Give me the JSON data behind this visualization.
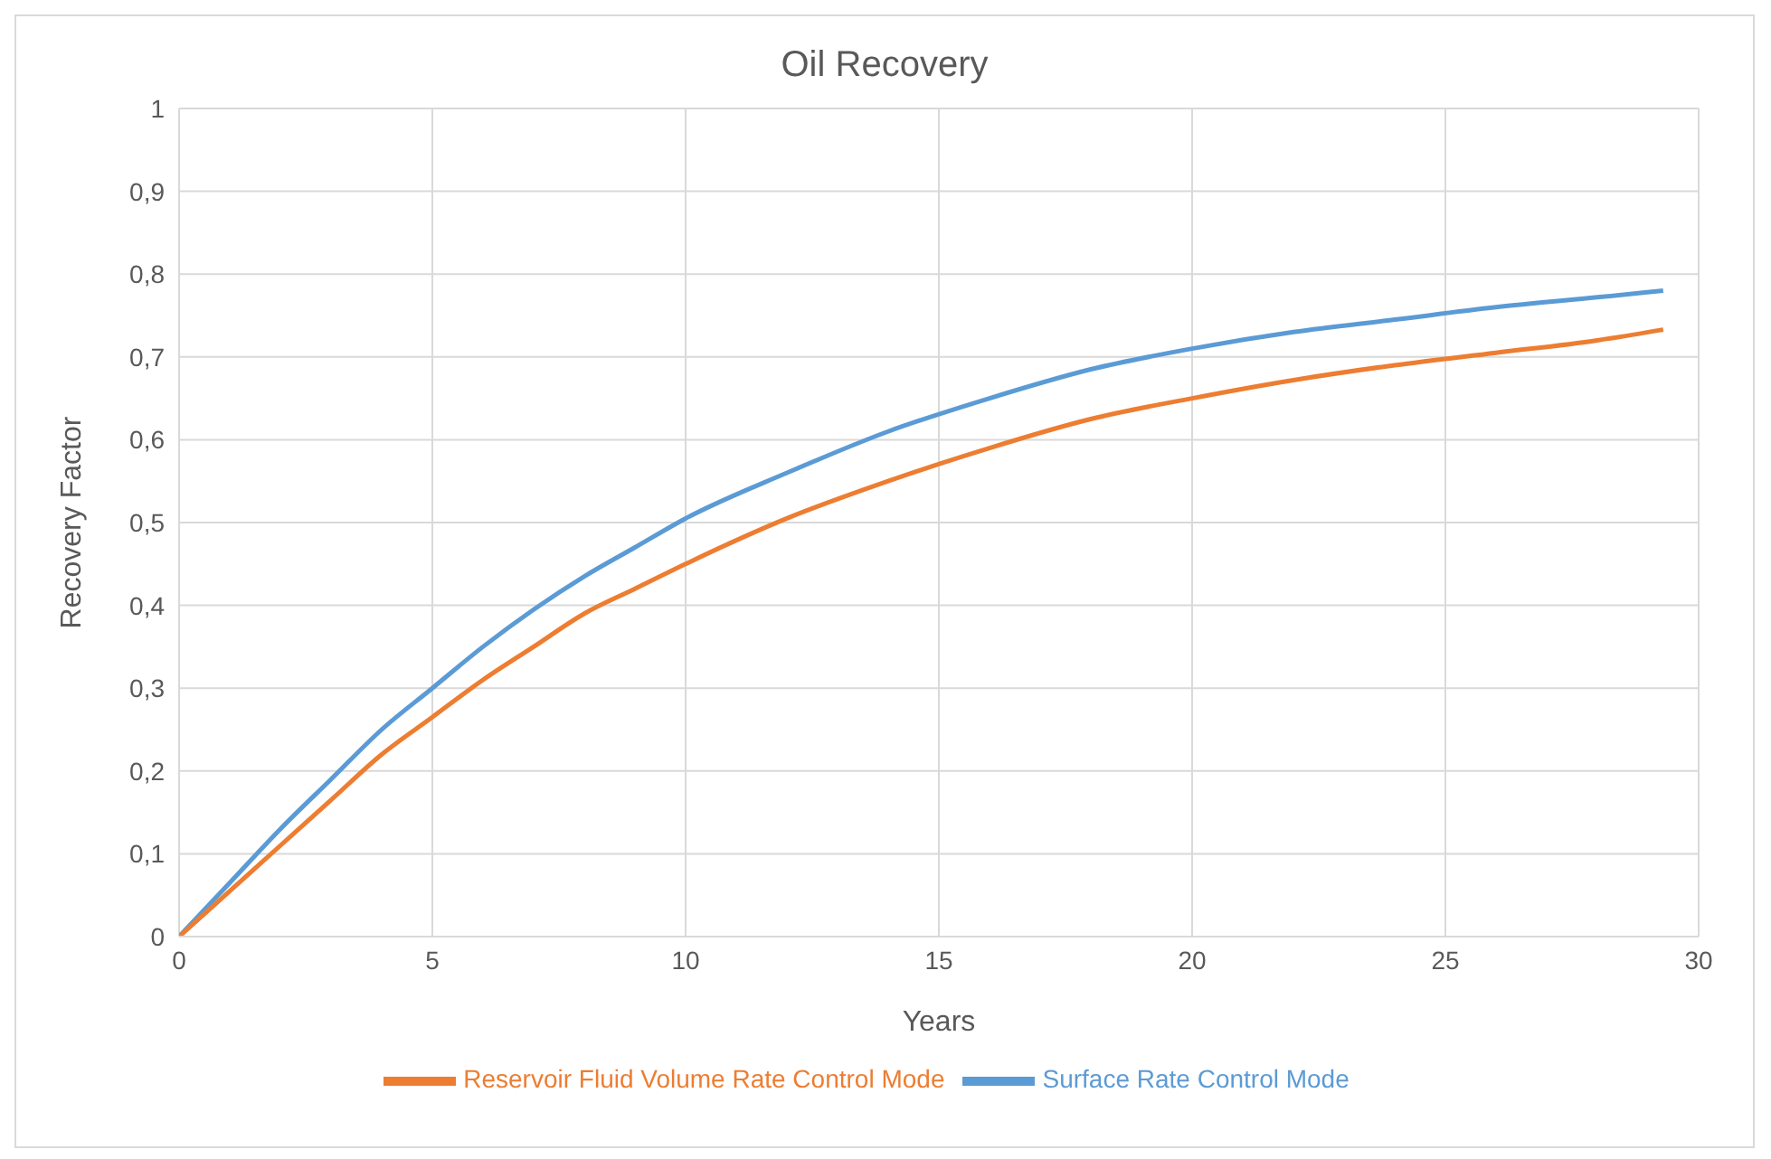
{
  "chart_data": {
    "type": "line",
    "title": "Oil Recovery",
    "xlabel": "Years",
    "ylabel": "Recovery Factor",
    "series": [
      {
        "name": "Surface Rate Control Mode",
        "color": "#5b9bd5",
        "x": [
          0,
          1,
          2,
          3,
          4,
          5,
          6,
          7,
          8,
          9,
          10,
          12,
          14,
          16,
          18,
          20,
          22,
          24,
          26,
          28,
          29.3
        ],
        "values": [
          0,
          0.065,
          0.13,
          0.19,
          0.25,
          0.3,
          0.35,
          0.395,
          0.435,
          0.47,
          0.505,
          0.56,
          0.61,
          0.65,
          0.685,
          0.71,
          0.73,
          0.745,
          0.76,
          0.772,
          0.78
        ]
      },
      {
        "name": "Reservoir Fluid Volume Rate Control Mode",
        "color": "#ed7d31",
        "x": [
          0,
          1,
          2,
          3,
          4,
          5,
          6,
          7,
          8,
          9,
          10,
          12,
          14,
          16,
          18,
          20,
          22,
          24,
          26,
          28,
          29.3
        ],
        "values": [
          0,
          0.055,
          0.11,
          0.165,
          0.22,
          0.265,
          0.31,
          0.35,
          0.39,
          0.42,
          0.45,
          0.505,
          0.55,
          0.59,
          0.625,
          0.65,
          0.672,
          0.69,
          0.705,
          0.72,
          0.733
        ]
      }
    ],
    "xlim": [
      0,
      30
    ],
    "xticks": [
      0,
      5,
      10,
      15,
      20,
      25,
      30
    ],
    "ylim": [
      0,
      1
    ],
    "yticks": [
      0,
      {
        "value": 0.1,
        "label": "0,1"
      },
      {
        "value": 0.2,
        "label": "0,2"
      },
      {
        "value": 0.3,
        "label": "0,3"
      },
      {
        "value": 0.4,
        "label": "0,4"
      },
      {
        "value": 0.5,
        "label": "0,5"
      },
      {
        "value": 0.6,
        "label": "0,6"
      },
      {
        "value": 0.7,
        "label": "0,7"
      },
      {
        "value": 0.8,
        "label": "0,8"
      },
      {
        "value": 0.9,
        "label": "0,9"
      },
      1
    ],
    "grid": true,
    "legend": "bottom",
    "marker": "none",
    "line_style": "solid"
  }
}
